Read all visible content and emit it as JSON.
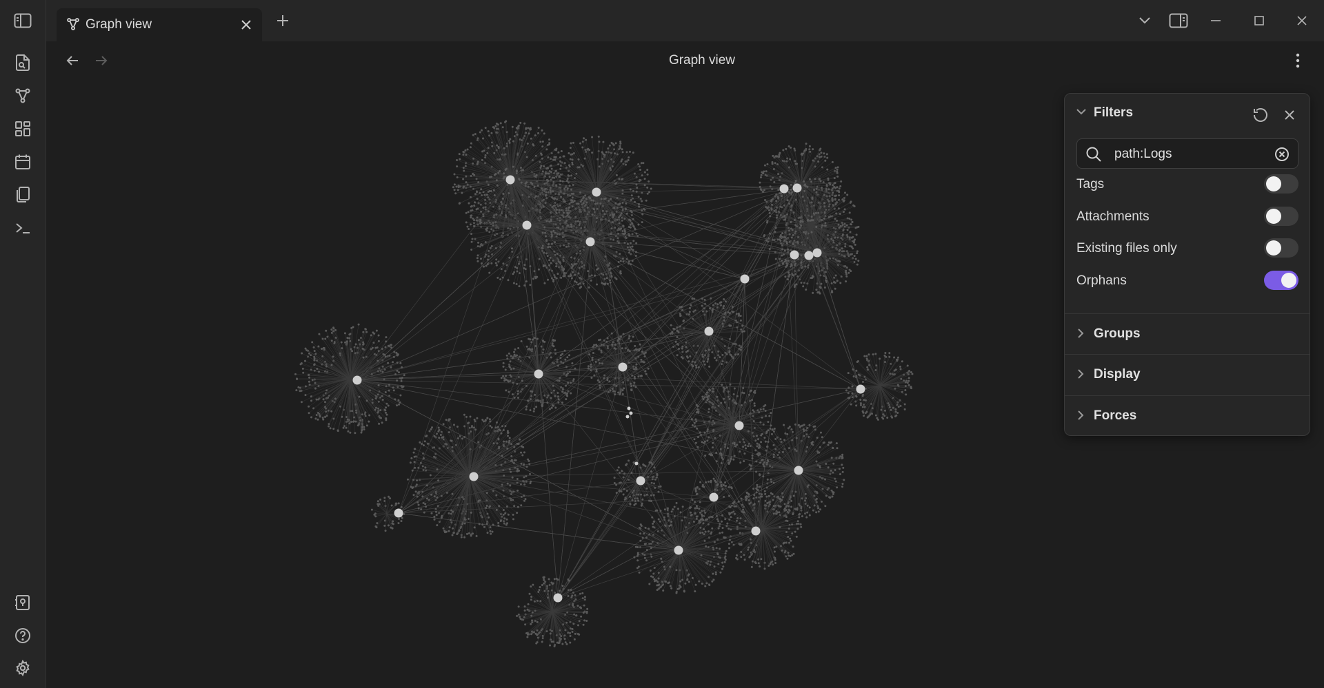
{
  "tab": {
    "title": "Graph view",
    "new_tab_symbol": "+"
  },
  "view": {
    "title": "Graph view"
  },
  "ribbon": {
    "top_icons": [
      "open-quick-switcher-icon",
      "graph-icon",
      "canvas-icon",
      "calendar-icon",
      "templates-icon",
      "terminal-icon"
    ],
    "bottom_icons": [
      "vault-icon",
      "help-icon",
      "settings-icon"
    ]
  },
  "filters": {
    "title": "Filters",
    "search": {
      "value": "path:Logs",
      "placeholder": ""
    },
    "toggles": [
      {
        "label": "Tags",
        "on": false
      },
      {
        "label": "Attachments",
        "on": false
      },
      {
        "label": "Existing files only",
        "on": false
      },
      {
        "label": "Orphans",
        "on": true
      }
    ],
    "sections": [
      "Groups",
      "Display",
      "Forces"
    ]
  },
  "colors": {
    "accent": "#7b5ce5",
    "background": "#1e1e1e",
    "panel": "#262626",
    "node": "#cfcfcf",
    "leaf_node": "#5a5a5a",
    "edge": "#4a4a4a"
  }
}
